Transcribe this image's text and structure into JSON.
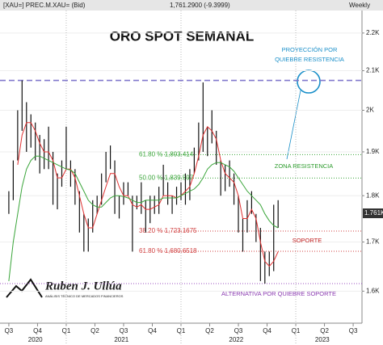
{
  "header": {
    "symbol": "[XAU=] PREC.M.XAU= (Bid)",
    "quote": "1,761.2900 (-9.3999)",
    "period": "Weekly"
  },
  "logo": {
    "name": "Ruben J. Ullúa",
    "tagline": "ANÁLISIS TÉCNICO DE MERCADOS FINANCIEROS"
  },
  "chart_data": {
    "type": "ohlc_bars",
    "title": "ORO SPOT SEMANAL",
    "log_scale": true,
    "x": [
      0,
      2,
      4,
      6,
      8,
      10,
      12,
      14,
      16,
      18,
      20,
      22,
      24,
      26,
      28,
      30,
      32,
      34,
      36,
      38,
      40,
      42,
      44,
      46,
      48,
      50,
      52,
      54,
      56,
      58,
      60,
      62,
      64,
      66,
      68,
      70,
      72,
      74,
      76,
      78,
      80,
      82,
      84,
      86,
      88,
      90,
      92,
      94,
      96,
      98,
      100,
      102,
      104,
      106,
      108,
      110,
      112,
      114,
      116,
      118,
      120,
      122
    ],
    "series": [
      {
        "name": "low",
        "color": "#111111",
        "values": [
          1760,
          1790,
          1880,
          1950,
          1900,
          1910,
          1880,
          1850,
          1860,
          1860,
          1780,
          1770,
          1820,
          1860,
          1820,
          1780,
          1720,
          1680,
          1680,
          1720,
          1760,
          1780,
          1830,
          1860,
          1760,
          1750,
          1780,
          1800,
          1680,
          1770,
          1760,
          1720,
          1740,
          1760,
          1760,
          1800,
          1780,
          1760,
          1780,
          1790,
          1780,
          1790,
          1850,
          1880,
          1900,
          1890,
          1920,
          1870,
          1800,
          1810,
          1820,
          1780,
          1720,
          1680,
          1720,
          1760,
          1700,
          1620,
          1615,
          1630,
          1640,
          1730
        ]
      },
      {
        "name": "high",
        "color": "#111111",
        "values": [
          1810,
          1880,
          2000,
          2075,
          2020,
          1990,
          1970,
          1940,
          1930,
          1960,
          1900,
          1850,
          1880,
          1960,
          1880,
          1860,
          1810,
          1760,
          1750,
          1790,
          1800,
          1850,
          1900,
          1915,
          1880,
          1800,
          1830,
          1830,
          1800,
          1800,
          1830,
          1790,
          1800,
          1800,
          1820,
          1870,
          1830,
          1800,
          1820,
          1830,
          1850,
          1860,
          1910,
          1970,
          2070,
          1960,
          2000,
          1950,
          1880,
          1870,
          1880,
          1850,
          1800,
          1750,
          1790,
          1810,
          1760,
          1730,
          1680,
          1680,
          1780,
          1790
        ]
      },
      {
        "name": "ma_fast",
        "color": "#e03030",
        "values": [
          null,
          null,
          1870,
          1940,
          1970,
          1970,
          1950,
          1920,
          1900,
          1900,
          1880,
          1840,
          1840,
          1860,
          1860,
          1840,
          1800,
          1760,
          1730,
          1730,
          1760,
          1790,
          1820,
          1850,
          1850,
          1820,
          1800,
          1800,
          1780,
          1775,
          1780,
          1770,
          1770,
          1775,
          1780,
          1800,
          1800,
          1800,
          1795,
          1800,
          1810,
          1820,
          1850,
          1890,
          1940,
          1960,
          1950,
          1930,
          1880,
          1850,
          1840,
          1830,
          1800,
          1750,
          1750,
          1770,
          1750,
          1700,
          1660,
          1650,
          1660,
          1680
        ]
      },
      {
        "name": "ma_slow",
        "color": "#3aa53a",
        "values": [
          1620,
          1700,
          1760,
          1820,
          1860,
          1880,
          1890,
          1890,
          1885,
          1880,
          1875,
          1870,
          1865,
          1860,
          1858,
          1850,
          1830,
          1810,
          1790,
          1780,
          1775,
          1775,
          1785,
          1795,
          1800,
          1800,
          1798,
          1795,
          1790,
          1785,
          1785,
          1790,
          1790,
          1790,
          1790,
          1795,
          1795,
          1795,
          1795,
          1800,
          1805,
          1810,
          1815,
          1825,
          1840,
          1860,
          1870,
          1875,
          1875,
          1870,
          1865,
          1855,
          1840,
          1825,
          1810,
          1800,
          1790,
          1780,
          1760,
          1745,
          1735,
          1730
        ]
      }
    ],
    "ylim": [
      1538,
      2262
    ],
    "yticks": [
      {
        "value": 2200,
        "label": "2.2K"
      },
      {
        "value": 2100,
        "label": "2.1K"
      },
      {
        "value": 2000,
        "label": "2K"
      },
      {
        "value": 1900,
        "label": "1.9K"
      },
      {
        "value": 1800,
        "label": "1.8K"
      },
      {
        "value": 1700,
        "label": "1.7K"
      },
      {
        "value": 1600,
        "label": "1.6K"
      }
    ],
    "xlim": [
      -4,
      160
    ],
    "xticks": [
      {
        "value": 0,
        "label": "Q3"
      },
      {
        "value": 13,
        "label": "Q4"
      },
      {
        "value": 26,
        "label": "Q1"
      },
      {
        "value": 39,
        "label": "Q2"
      },
      {
        "value": 52,
        "label": "Q3"
      },
      {
        "value": 65,
        "label": "Q4"
      },
      {
        "value": 78,
        "label": "Q1"
      },
      {
        "value": 91,
        "label": "Q2"
      },
      {
        "value": 104,
        "label": "Q3"
      },
      {
        "value": 117,
        "label": "Q4"
      },
      {
        "value": 130,
        "label": "Q1"
      },
      {
        "value": 143,
        "label": "Q2"
      },
      {
        "value": 156,
        "label": "Q3"
      }
    ],
    "years": [
      {
        "value": 12,
        "label": "2020"
      },
      {
        "value": 51,
        "label": "2021"
      },
      {
        "value": 103,
        "label": "2022"
      },
      {
        "value": 142,
        "label": "2023"
      }
    ],
    "year_lines": [
      26,
      78,
      130
    ],
    "last": {
      "value": 1761.29,
      "label": "1.761K"
    },
    "levels": [
      {
        "value": 2075,
        "color": "#8077cc",
        "style": "dashed"
      },
      {
        "value": 1893.414,
        "label": "61.80 % 1,893.414",
        "color": "#3aa53a",
        "style": "dotted"
      },
      {
        "value": 1839.597,
        "label": "50.00 % 1,839.597",
        "color": "#3aa53a",
        "style": "dotted"
      },
      {
        "value": 1723.1675,
        "label": "38.20 % 1,723.1675",
        "color": "#d04040",
        "style": "dotted"
      },
      {
        "value": 1680.6518,
        "label": "61.80 % 1,680.6518",
        "color": "#d04040",
        "style": "dotted"
      },
      {
        "value": 1615,
        "color": "#9b4fc0",
        "style": "dotted"
      }
    ],
    "annotations": [
      {
        "text": "PROYECCIÓN POR",
        "color": "#1a8fc9"
      },
      {
        "text": "QUIEBRE RESISTENCIA",
        "color": "#1a8fc9"
      },
      {
        "text": "ZONA RESISTENCIA",
        "color": "#2a9a2a"
      },
      {
        "text": "SOPORTE",
        "color": "#c02020"
      },
      {
        "text": "ALTERNATIVA POR QUIEBRE SOPORTE",
        "color": "#8a3ab0"
      }
    ]
  }
}
